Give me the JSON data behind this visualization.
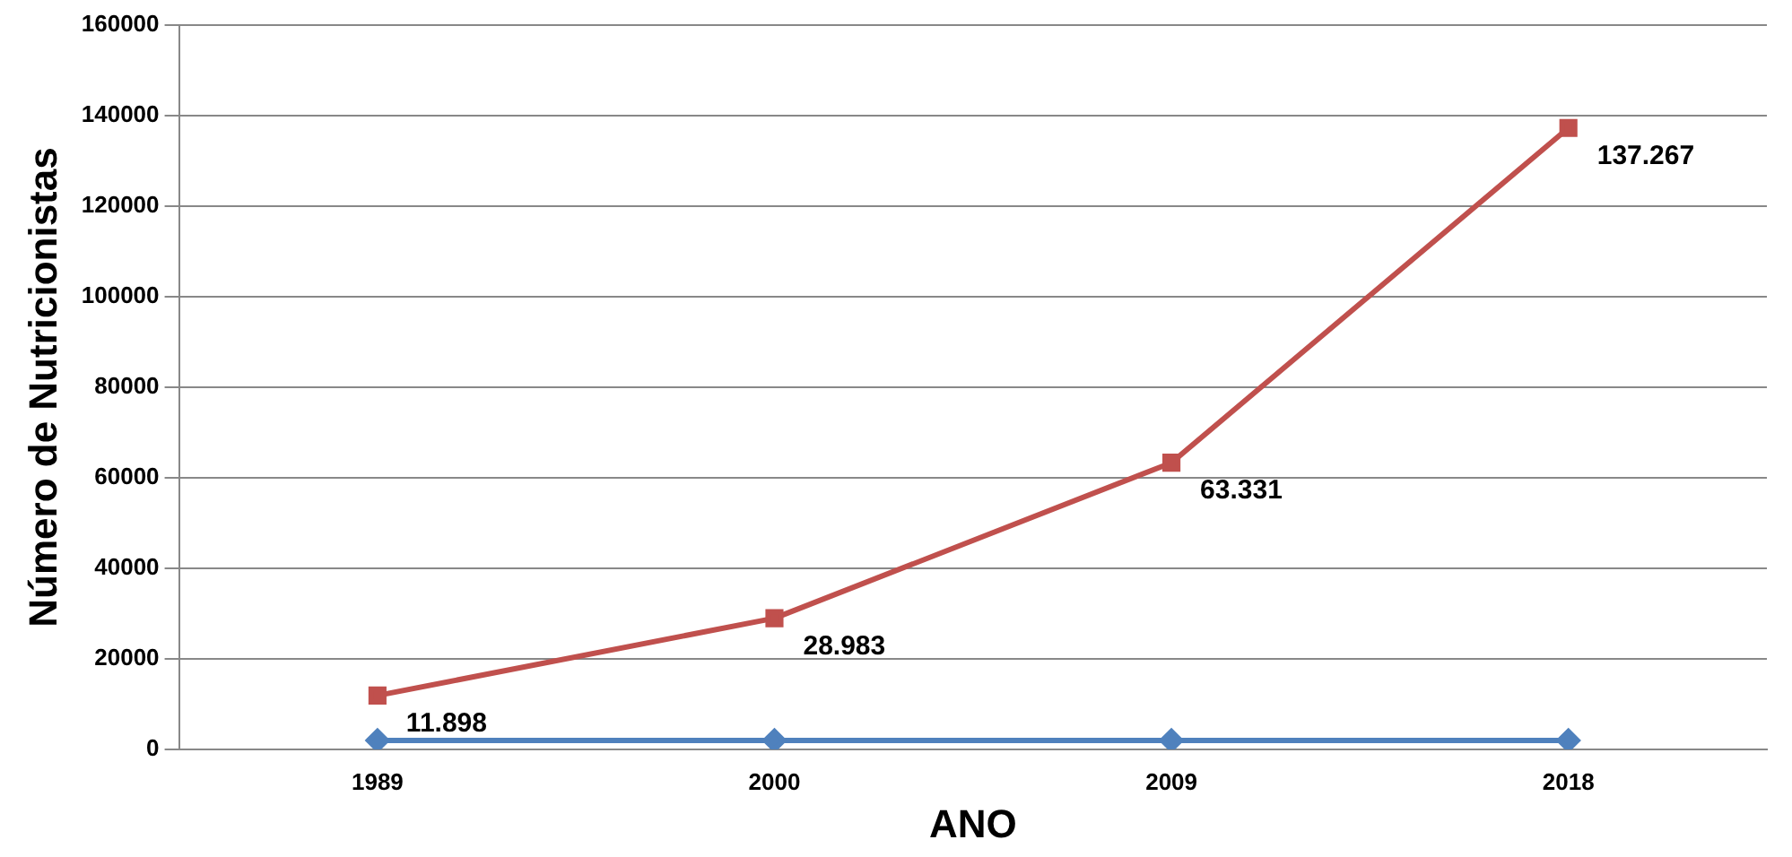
{
  "chart_data": {
    "type": "line",
    "xlabel": "ANO",
    "ylabel": "Número de Nutricionistas",
    "categories": [
      "1989",
      "2000",
      "2009",
      "2018"
    ],
    "series": [
      {
        "color": "#4f81bd",
        "values": [
          2000,
          2000,
          2000,
          2000
        ],
        "marker": "diamond"
      },
      {
        "color": "#c0504d",
        "values": [
          11898,
          28983,
          63331,
          137267
        ],
        "marker": "square",
        "value_labels": [
          "11.898",
          "28.983",
          "63.331",
          "137.267"
        ]
      }
    ],
    "ylim": [
      0,
      160000
    ],
    "yticks": [
      0,
      20000,
      40000,
      60000,
      80000,
      100000,
      120000,
      140000,
      160000
    ],
    "grid": "y",
    "legend": false,
    "line_style": "solid"
  }
}
